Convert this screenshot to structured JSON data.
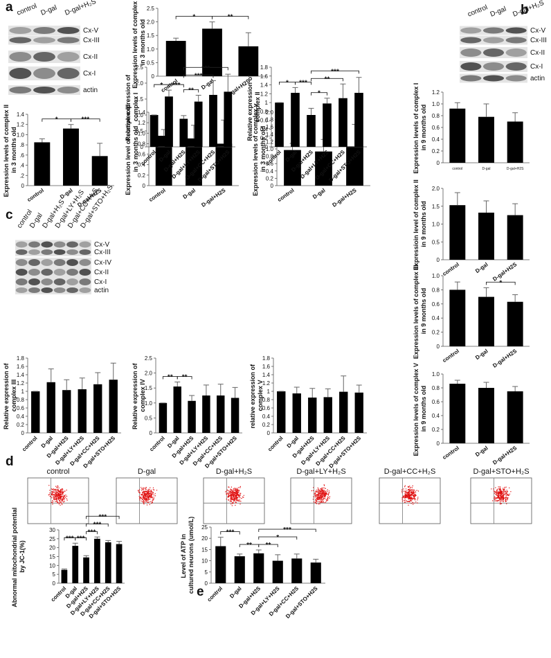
{
  "panel_labels": [
    "a",
    "b",
    "c",
    "d",
    "e"
  ],
  "blots": [
    {
      "lanes": [
        "control",
        "D-gal",
        "D-gal+H₂S"
      ],
      "bands": [
        "Cx-V",
        "Cx-III",
        "Cx-II",
        "Cx-I",
        "actin"
      ]
    },
    {
      "lanes": [
        "control",
        "D-gal",
        "D-gal+H₂S"
      ],
      "bands": [
        "Cx-V",
        "Cx-III",
        "Cx-II",
        "Cx-I",
        "actin"
      ]
    },
    {
      "lanes": [
        "control",
        "D-gal",
        "D-gal+H₂S",
        "D-gal+LY+H₂S",
        "D-gal+CC+H₂S",
        "D-gal+STO+H₂S"
      ],
      "bands": [
        "Cx-V",
        "Cx-III",
        "Cx-IV",
        "Cx-II",
        "Cx-I",
        "actin"
      ]
    }
  ],
  "flow_titles": [
    "control",
    "D-gal",
    "D-gal+H₂S",
    "D-gal+LY+H₂S",
    "D-gal+CC+H₂S",
    "D-gal+STO+H₂S"
  ],
  "chart_data": [
    {
      "type": "bar",
      "y_label": "Expression levels of complex I in 3 months old",
      "categories": [
        "control",
        "D-gal",
        "D-gal+H2S"
      ],
      "values": [
        1.3,
        1.75,
        1.1
      ],
      "errors": [
        0.1,
        0.25,
        0.5
      ],
      "color": "#000000",
      "ylim": [
        0,
        2.5
      ],
      "yticks": [
        0,
        0.5,
        {
          "value": 1,
          "label": "1.0"
        },
        1.5,
        {
          "value": 2,
          "label": "2.0"
        },
        2.5
      ],
      "significance": [
        {
          "pair": [
            "control",
            "D-gal"
          ],
          "label": "*"
        },
        {
          "pair": [
            "D-gal",
            "D-gal+H2S"
          ],
          "label": "**"
        }
      ]
    },
    {
      "type": "bar",
      "y_label": "Expression levels of complex II in 3 months old",
      "categories": [
        "control",
        "D-gal",
        "D-gal+H2S"
      ],
      "values": [
        0.85,
        1.12,
        0.58
      ],
      "errors": [
        0.07,
        0.08,
        0.25
      ],
      "color": "#000000",
      "ylim": [
        0,
        1.4
      ],
      "yticks": [
        0,
        {
          "value": 0.2,
          "label": ".2"
        },
        {
          "value": 0.4,
          "label": ".4"
        },
        {
          "value": 0.6,
          "label": ".6"
        },
        {
          "value": 0.8,
          "label": ".8"
        },
        {
          "value": 1,
          "label": "1.0"
        },
        1.2,
        1.4
      ],
      "significance": [
        {
          "pair": [
            "control",
            "D-gal"
          ],
          "label": "*"
        },
        {
          "pair": [
            "D-gal",
            "D-gal+H2S"
          ],
          "label": "***"
        }
      ]
    },
    {
      "type": "bar",
      "y_label": "Expression level of complex III in 3 months old",
      "categories": [
        "control",
        "D-gal",
        "D-gal+H2S"
      ],
      "values": [
        0.95,
        0.9,
        0.8
      ],
      "errors": [
        0.12,
        0.25,
        0.45
      ],
      "color": "#000000",
      "ylim": [
        0,
        1.4
      ],
      "yticks": [
        0,
        0.2,
        0.4,
        0.6,
        0.8,
        {
          "value": 1,
          "label": "1.0"
        },
        1.2,
        1.4
      ],
      "significance": []
    },
    {
      "type": "bar",
      "y_label": "Expression levels of complex v in 3 months old",
      "categories": [
        "control",
        "D-gal",
        "D-gal+H2S"
      ],
      "values": [
        0.97,
        0.93,
        1.07
      ],
      "errors": [
        0.18,
        0.33,
        0.6
      ],
      "color": "#000000",
      "ylim": [
        0,
        2
      ],
      "yticks": [
        0,
        0.2,
        0.4,
        0.6,
        0.8,
        {
          "value": 1,
          "label": "1.0"
        },
        1.2,
        1.4,
        1.6,
        1.8,
        {
          "value": 2,
          "label": "2.0"
        }
      ],
      "significance": []
    },
    {
      "type": "bar",
      "y_label": "Expression levels of complex I in 9 months old",
      "categories": [
        "control",
        "D-gal",
        "D-gal+H2S"
      ],
      "values": [
        0.92,
        0.78,
        0.7
      ],
      "errors": [
        0.1,
        0.22,
        0.15
      ],
      "color": "#000000",
      "ylim": [
        0,
        1.2
      ],
      "yticks": [
        0,
        0.2,
        0.4,
        0.6,
        0.8,
        {
          "value": 1,
          "label": "1.0"
        },
        1.2
      ],
      "significance": []
    },
    {
      "type": "bar",
      "y_label": "Expressioin level of complex II in 9 months old",
      "categories": [
        "control",
        "D-gal",
        "D-gal+H2S"
      ],
      "values": [
        1.53,
        1.32,
        1.25
      ],
      "errors": [
        0.35,
        0.33,
        0.32
      ],
      "color": "#000000",
      "ylim": [
        0,
        2
      ],
      "yticks": [
        0,
        0.5,
        {
          "value": 1,
          "label": "1.0"
        },
        1.5,
        {
          "value": 2,
          "label": "2.0"
        }
      ],
      "significance": []
    },
    {
      "type": "bar",
      "y_label": "Expression levels of complex III in 9 months old",
      "categories": [
        "control",
        "D-gal",
        "D-gal+H2S"
      ],
      "values": [
        0.8,
        0.7,
        0.63
      ],
      "errors": [
        0.11,
        0.13,
        0.1
      ],
      "color": "#000000",
      "ylim": [
        0,
        1
      ],
      "yticks": [
        0,
        0.2,
        0.4,
        0.6,
        0.8,
        {
          "value": 1,
          "label": "1.0"
        }
      ],
      "significance": [
        {
          "pair": [
            "D-gal",
            "D-gal+H2S"
          ],
          "label": "*"
        }
      ]
    },
    {
      "type": "bar",
      "y_label": "Expression levels of complex V in 9 months old",
      "categories": [
        "control",
        "D-gal",
        "D-gal+H2S"
      ],
      "values": [
        0.86,
        0.8,
        0.75
      ],
      "errors": [
        0.05,
        0.08,
        0.07
      ],
      "color": "#000000",
      "ylim": [
        0,
        1
      ],
      "yticks": [
        0,
        0.2,
        0.4,
        0.6,
        0.8,
        {
          "value": 1,
          "label": "1.0"
        }
      ],
      "significance": []
    },
    {
      "type": "bar",
      "y_label": "Relative expression of complex I",
      "categories": [
        "control",
        "D-gal",
        "D-gal+H2S",
        "D-gal+LY+H2S",
        "D-gal+CC+H2S",
        "D-gal+STO+H2S"
      ],
      "values": [
        1,
        1.58,
        0.88,
        1.42,
        1.63,
        1.73
      ],
      "errors": [
        0,
        0.2,
        0.1,
        0.2,
        0.45,
        0.55
      ],
      "color": "#000000",
      "ylim": [
        0,
        2.5
      ],
      "yticks": [
        0,
        0.5,
        {
          "value": 1,
          "label": "1.0"
        },
        1.5,
        {
          "value": 2,
          "label": "2.0"
        },
        2.5
      ],
      "significance": [
        {
          "pair": [
            "control",
            "D-gal"
          ],
          "label": "*"
        },
        {
          "pair": [
            "D-gal",
            "D-gal+H2S"
          ],
          "label": "***"
        },
        {
          "pair": [
            "D-gal+H2S",
            "D-gal+LY+H2S"
          ],
          "label": "**"
        },
        {
          "pair": [
            "D-gal+H2S",
            "D-gal+CC+H2S"
          ],
          "label": "***"
        },
        {
          "pair": [
            "D-gal+H2S",
            "D-gal+STO+H2S"
          ],
          "label": "***"
        }
      ]
    },
    {
      "type": "bar",
      "y_label": "Relative expression of complex II",
      "categories": [
        "control",
        "D-gal",
        "D-gal+H2S",
        "D-gal+LY+H2S",
        "D-gal+CC+H2S",
        "D-gal+STO+H2S"
      ],
      "values": [
        1,
        1.22,
        0.72,
        0.98,
        1.1,
        1.22
      ],
      "errors": [
        0,
        0.12,
        0.15,
        0.12,
        0.32,
        0.35
      ],
      "color": "#000000",
      "ylim": [
        0,
        1.8
      ],
      "yticks": [
        0,
        0.2,
        0.4,
        0.6,
        0.8,
        1,
        1.2,
        1.4,
        1.6,
        1.8
      ],
      "significance": [
        {
          "pair": [
            "control",
            "D-gal"
          ],
          "label": "*"
        },
        {
          "pair": [
            "D-gal",
            "D-gal+H2S"
          ],
          "label": "***"
        },
        {
          "pair": [
            "D-gal+H2S",
            "D-gal+LY+H2S"
          ],
          "label": "*"
        },
        {
          "pair": [
            "D-gal+H2S",
            "D-gal+CC+H2S"
          ],
          "label": "**"
        },
        {
          "pair": [
            "D-gal+H2S",
            "D-gal+STO+H2S"
          ],
          "label": "***"
        }
      ]
    },
    {
      "type": "bar",
      "y_label": "Relative expression of complex III",
      "categories": [
        "control",
        "D-gal",
        "D-gal+H2S",
        "D-gal+LY+H2S",
        "D-gal+CC+H2S",
        "D-gal+STO+H2S"
      ],
      "values": [
        1,
        1.22,
        1.03,
        1.05,
        1.17,
        1.28
      ],
      "errors": [
        0,
        0.32,
        0.25,
        0.27,
        0.28,
        0.4
      ],
      "color": "#000000",
      "ylim": [
        0,
        1.8
      ],
      "yticks": [
        0,
        0.2,
        0.4,
        0.6,
        0.8,
        1,
        1.2,
        1.4,
        1.6,
        1.8
      ],
      "significance": []
    },
    {
      "type": "bar",
      "y_label": "Relative expression of complex IV",
      "categories": [
        "control",
        "D-gal",
        "D-gal+H2S",
        "D-gal+LY+H2S",
        "D-gal+CC+H2S",
        "D-gal+STO+H2S"
      ],
      "values": [
        1,
        1.55,
        1.07,
        1.25,
        1.25,
        1.17
      ],
      "errors": [
        0,
        0.15,
        0.18,
        0.35,
        0.38,
        0.35
      ],
      "color": "#000000",
      "ylim": [
        0,
        2.5
      ],
      "yticks": [
        0,
        0.5,
        {
          "value": 1,
          "label": "1.0"
        },
        1.5,
        {
          "value": 2,
          "label": "2.0"
        },
        2.5
      ],
      "significance": [
        {
          "pair": [
            "control",
            "D-gal"
          ],
          "label": "**"
        },
        {
          "pair": [
            "D-gal",
            "D-gal+H2S"
          ],
          "label": "**"
        }
      ]
    },
    {
      "type": "bar",
      "y_label": "relative expression of complex V",
      "categories": [
        "control",
        "D-gal",
        "D-gal+H2S",
        "D-gal+LY+H2S",
        "D-gal+CC+H2S",
        "D-gal+STO+H2S"
      ],
      "values": [
        1,
        0.95,
        0.85,
        0.86,
        0.99,
        0.97
      ],
      "errors": [
        0,
        0.15,
        0.22,
        0.2,
        0.38,
        0.18
      ],
      "color": "#000000",
      "ylim": [
        0,
        1.8
      ],
      "yticks": [
        0,
        0.2,
        0.4,
        0.6,
        0.8,
        1,
        1.2,
        1.4,
        1.6,
        1.8
      ],
      "significance": []
    },
    {
      "type": "bar",
      "y_label": "Abnormal mitochondrial potential by JC-1(%)",
      "categories": [
        "control",
        "D-gal",
        "D-gal+H2S",
        "D-gal+LY+H2S",
        "D-gal+CC+H2S",
        "D-gal+STO+H2S"
      ],
      "values": [
        7.5,
        21,
        14.5,
        25,
        23,
        22
      ],
      "errors": [
        0.5,
        1.5,
        1,
        1,
        1,
        1.5
      ],
      "color": "#000000",
      "ylim": [
        0,
        30
      ],
      "yticks": [
        0,
        5,
        10,
        15,
        20,
        25,
        30
      ],
      "significance": [
        {
          "pair": [
            "control",
            "D-gal"
          ],
          "label": "***"
        },
        {
          "pair": [
            "D-gal",
            "D-gal+H2S"
          ],
          "label": "***"
        },
        {
          "pair": [
            "D-gal+H2S",
            "D-gal+LY+H2S"
          ],
          "label": "***"
        },
        {
          "pair": [
            "D-gal+H2S",
            "D-gal+CC+H2S"
          ],
          "label": "***"
        },
        {
          "pair": [
            "D-gal+H2S",
            "D-gal+STO+H2S"
          ],
          "label": "***"
        }
      ]
    },
    {
      "type": "bar",
      "y_label": "Level of ATP in cultured neurons (umol/L)",
      "categories": [
        "control",
        "D-gal",
        "D-gal+H2S",
        "D-gal+LY+H2S",
        "D-gal+CC+H2S",
        "D-gal+STO+H2S"
      ],
      "values": [
        16.5,
        12,
        13.3,
        10,
        11,
        9.2
      ],
      "errors": [
        4,
        1,
        1.5,
        2.7,
        2,
        1.5
      ],
      "color": "#000000",
      "ylim": [
        0,
        25
      ],
      "yticks": [
        0,
        5,
        10,
        15,
        20,
        25
      ],
      "significance": [
        {
          "pair": [
            "control",
            "D-gal"
          ],
          "label": "***"
        },
        {
          "pair": [
            "D-gal",
            "D-gal+H2S"
          ],
          "label": "**"
        },
        {
          "pair": [
            "D-gal+H2S",
            "D-gal+LY+H2S"
          ],
          "label": "**"
        },
        {
          "pair": [
            "D-gal+H2S",
            "D-gal+CC+H2S"
          ],
          "label": "*"
        },
        {
          "pair": [
            "D-gal+H2S",
            "D-gal+STO+H2S"
          ],
          "label": "***"
        }
      ]
    }
  ]
}
